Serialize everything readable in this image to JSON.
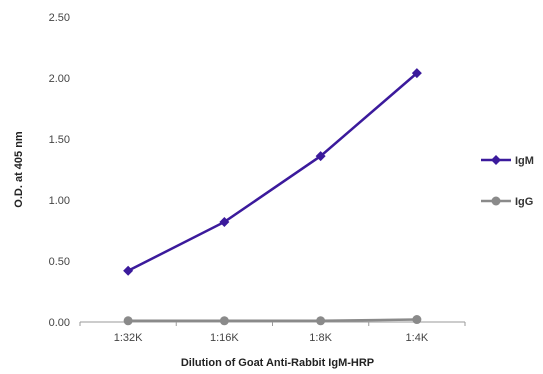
{
  "chart_data": {
    "type": "line",
    "categories": [
      "1:32K",
      "1:16K",
      "1:8K",
      "1:4K"
    ],
    "series": [
      {
        "name": "IgM",
        "values": [
          0.42,
          0.82,
          1.36,
          2.04
        ],
        "color": "#3b1a9c",
        "marker": "diamond"
      },
      {
        "name": "IgG",
        "values": [
          0.01,
          0.01,
          0.01,
          0.02
        ],
        "color": "#8a8a8a",
        "marker": "circle"
      }
    ],
    "title": "",
    "xlabel": "Dilution of Goat Anti-Rabbit IgM-HRP",
    "ylabel": "O.D. at 405 nm",
    "ylim": [
      0,
      2.5
    ],
    "yticks": [
      "0.00",
      "0.50",
      "1.00",
      "1.50",
      "2.00",
      "2.50"
    ],
    "grid": false,
    "legend_position": "right"
  }
}
